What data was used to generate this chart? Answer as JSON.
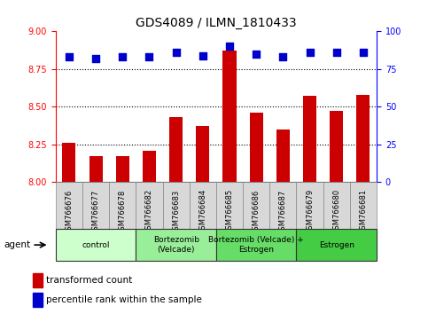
{
  "title": "GDS4089 / ILMN_1810433",
  "samples": [
    "GSM766676",
    "GSM766677",
    "GSM766678",
    "GSM766682",
    "GSM766683",
    "GSM766684",
    "GSM766685",
    "GSM766686",
    "GSM766687",
    "GSM766679",
    "GSM766680",
    "GSM766681"
  ],
  "transformed_count": [
    8.26,
    8.17,
    8.17,
    8.21,
    8.43,
    8.37,
    8.87,
    8.46,
    8.35,
    8.57,
    8.47,
    8.58
  ],
  "percentile_rank": [
    83,
    82,
    83,
    83,
    86,
    84,
    90,
    85,
    83,
    86,
    86,
    86
  ],
  "ylim_left": [
    8.0,
    9.0
  ],
  "ylim_right": [
    0,
    100
  ],
  "yticks_left": [
    8.0,
    8.25,
    8.5,
    8.75,
    9.0
  ],
  "yticks_right": [
    0,
    25,
    50,
    75,
    100
  ],
  "bar_color": "#cc0000",
  "dot_color": "#0000cc",
  "groups": [
    {
      "label": "control",
      "start": 0,
      "end": 3,
      "color": "#ccffcc"
    },
    {
      "label": "Bortezomib\n(Velcade)",
      "start": 3,
      "end": 6,
      "color": "#99ee99"
    },
    {
      "label": "Bortezomib (Velcade) +\nEstrogen",
      "start": 6,
      "end": 9,
      "color": "#66dd66"
    },
    {
      "label": "Estrogen",
      "start": 9,
      "end": 12,
      "color": "#44cc44"
    }
  ],
  "agent_label": "agent",
  "legend_bar_label": "transformed count",
  "legend_dot_label": "percentile rank within the sample",
  "bar_width": 0.5,
  "dot_size": 30,
  "tick_fontsize": 7,
  "title_fontsize": 10
}
